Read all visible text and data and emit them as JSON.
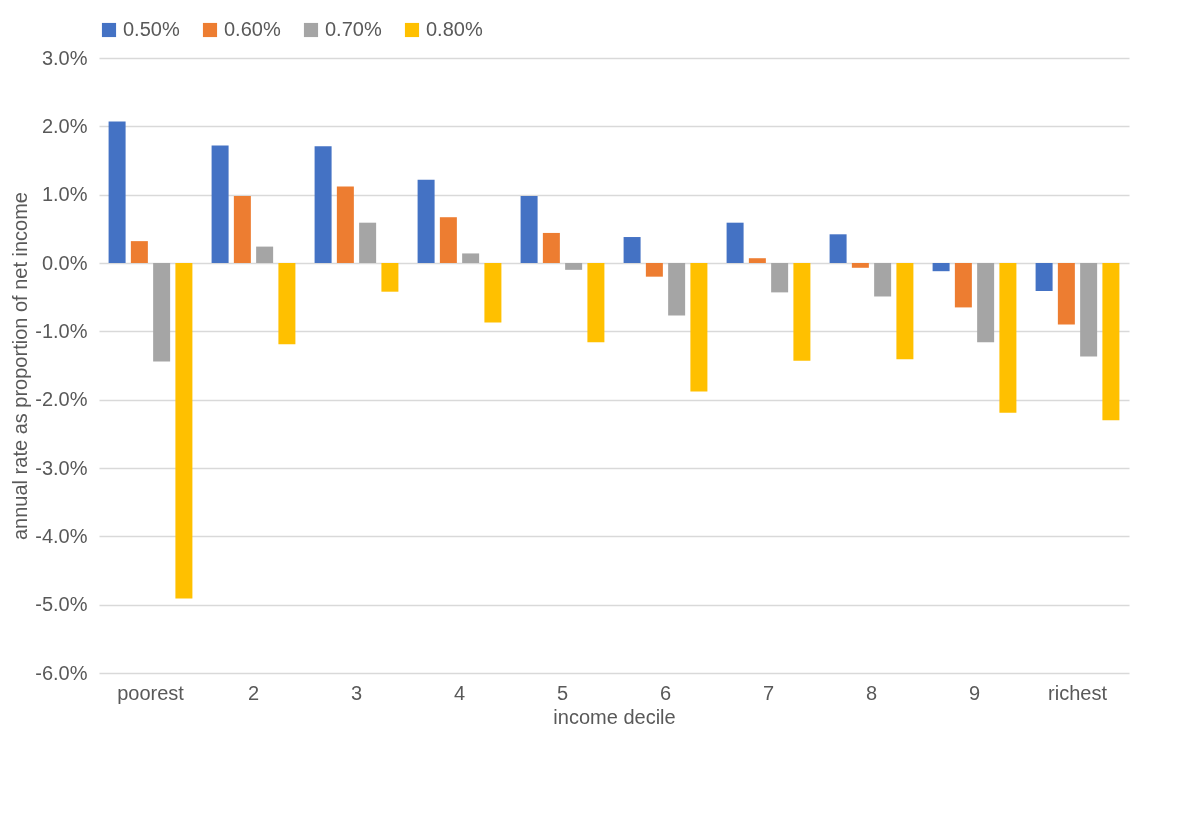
{
  "chart_data": {
    "type": "bar",
    "xlabel": "income decile",
    "ylabel": "annual rate as proportion of net income",
    "categories": [
      "poorest",
      "2",
      "3",
      "4",
      "5",
      "6",
      "7",
      "8",
      "9",
      "richest"
    ],
    "series": [
      {
        "name": "0.50%",
        "color": "#4472c4",
        "values": [
          2.07,
          1.72,
          1.71,
          1.22,
          0.98,
          0.38,
          0.59,
          0.42,
          -0.12,
          -0.41
        ]
      },
      {
        "name": "0.60%",
        "color": "#ed7d31",
        "values": [
          0.32,
          0.98,
          1.12,
          0.67,
          0.44,
          -0.2,
          0.07,
          -0.07,
          -0.65,
          -0.9
        ]
      },
      {
        "name": "0.70%",
        "color": "#a5a5a5",
        "values": [
          -1.44,
          0.24,
          0.59,
          0.14,
          -0.1,
          -0.77,
          -0.43,
          -0.49,
          -1.16,
          -1.37
        ]
      },
      {
        "name": "0.80%",
        "color": "#ffc000",
        "values": [
          -4.91,
          -1.19,
          -0.42,
          -0.87,
          -1.16,
          -1.88,
          -1.43,
          -1.41,
          -2.19,
          -2.3
        ]
      }
    ],
    "ylim": [
      -6,
      3
    ],
    "yticks": [
      {
        "value": -6,
        "label": "-6.0%"
      },
      {
        "value": -5,
        "label": "-5.0%"
      },
      {
        "value": -4,
        "label": "-4.0%"
      },
      {
        "value": -3,
        "label": "-3.0%"
      },
      {
        "value": -2,
        "label": "-2.0%"
      },
      {
        "value": -1,
        "label": "-1.0%"
      },
      {
        "value": 0,
        "label": "0.0%"
      },
      {
        "value": 1,
        "label": "1.0%"
      },
      {
        "value": 2,
        "label": "2.0%"
      },
      {
        "value": 3,
        "label": "3.0%"
      }
    ],
    "grid": "y",
    "legend": "top"
  }
}
